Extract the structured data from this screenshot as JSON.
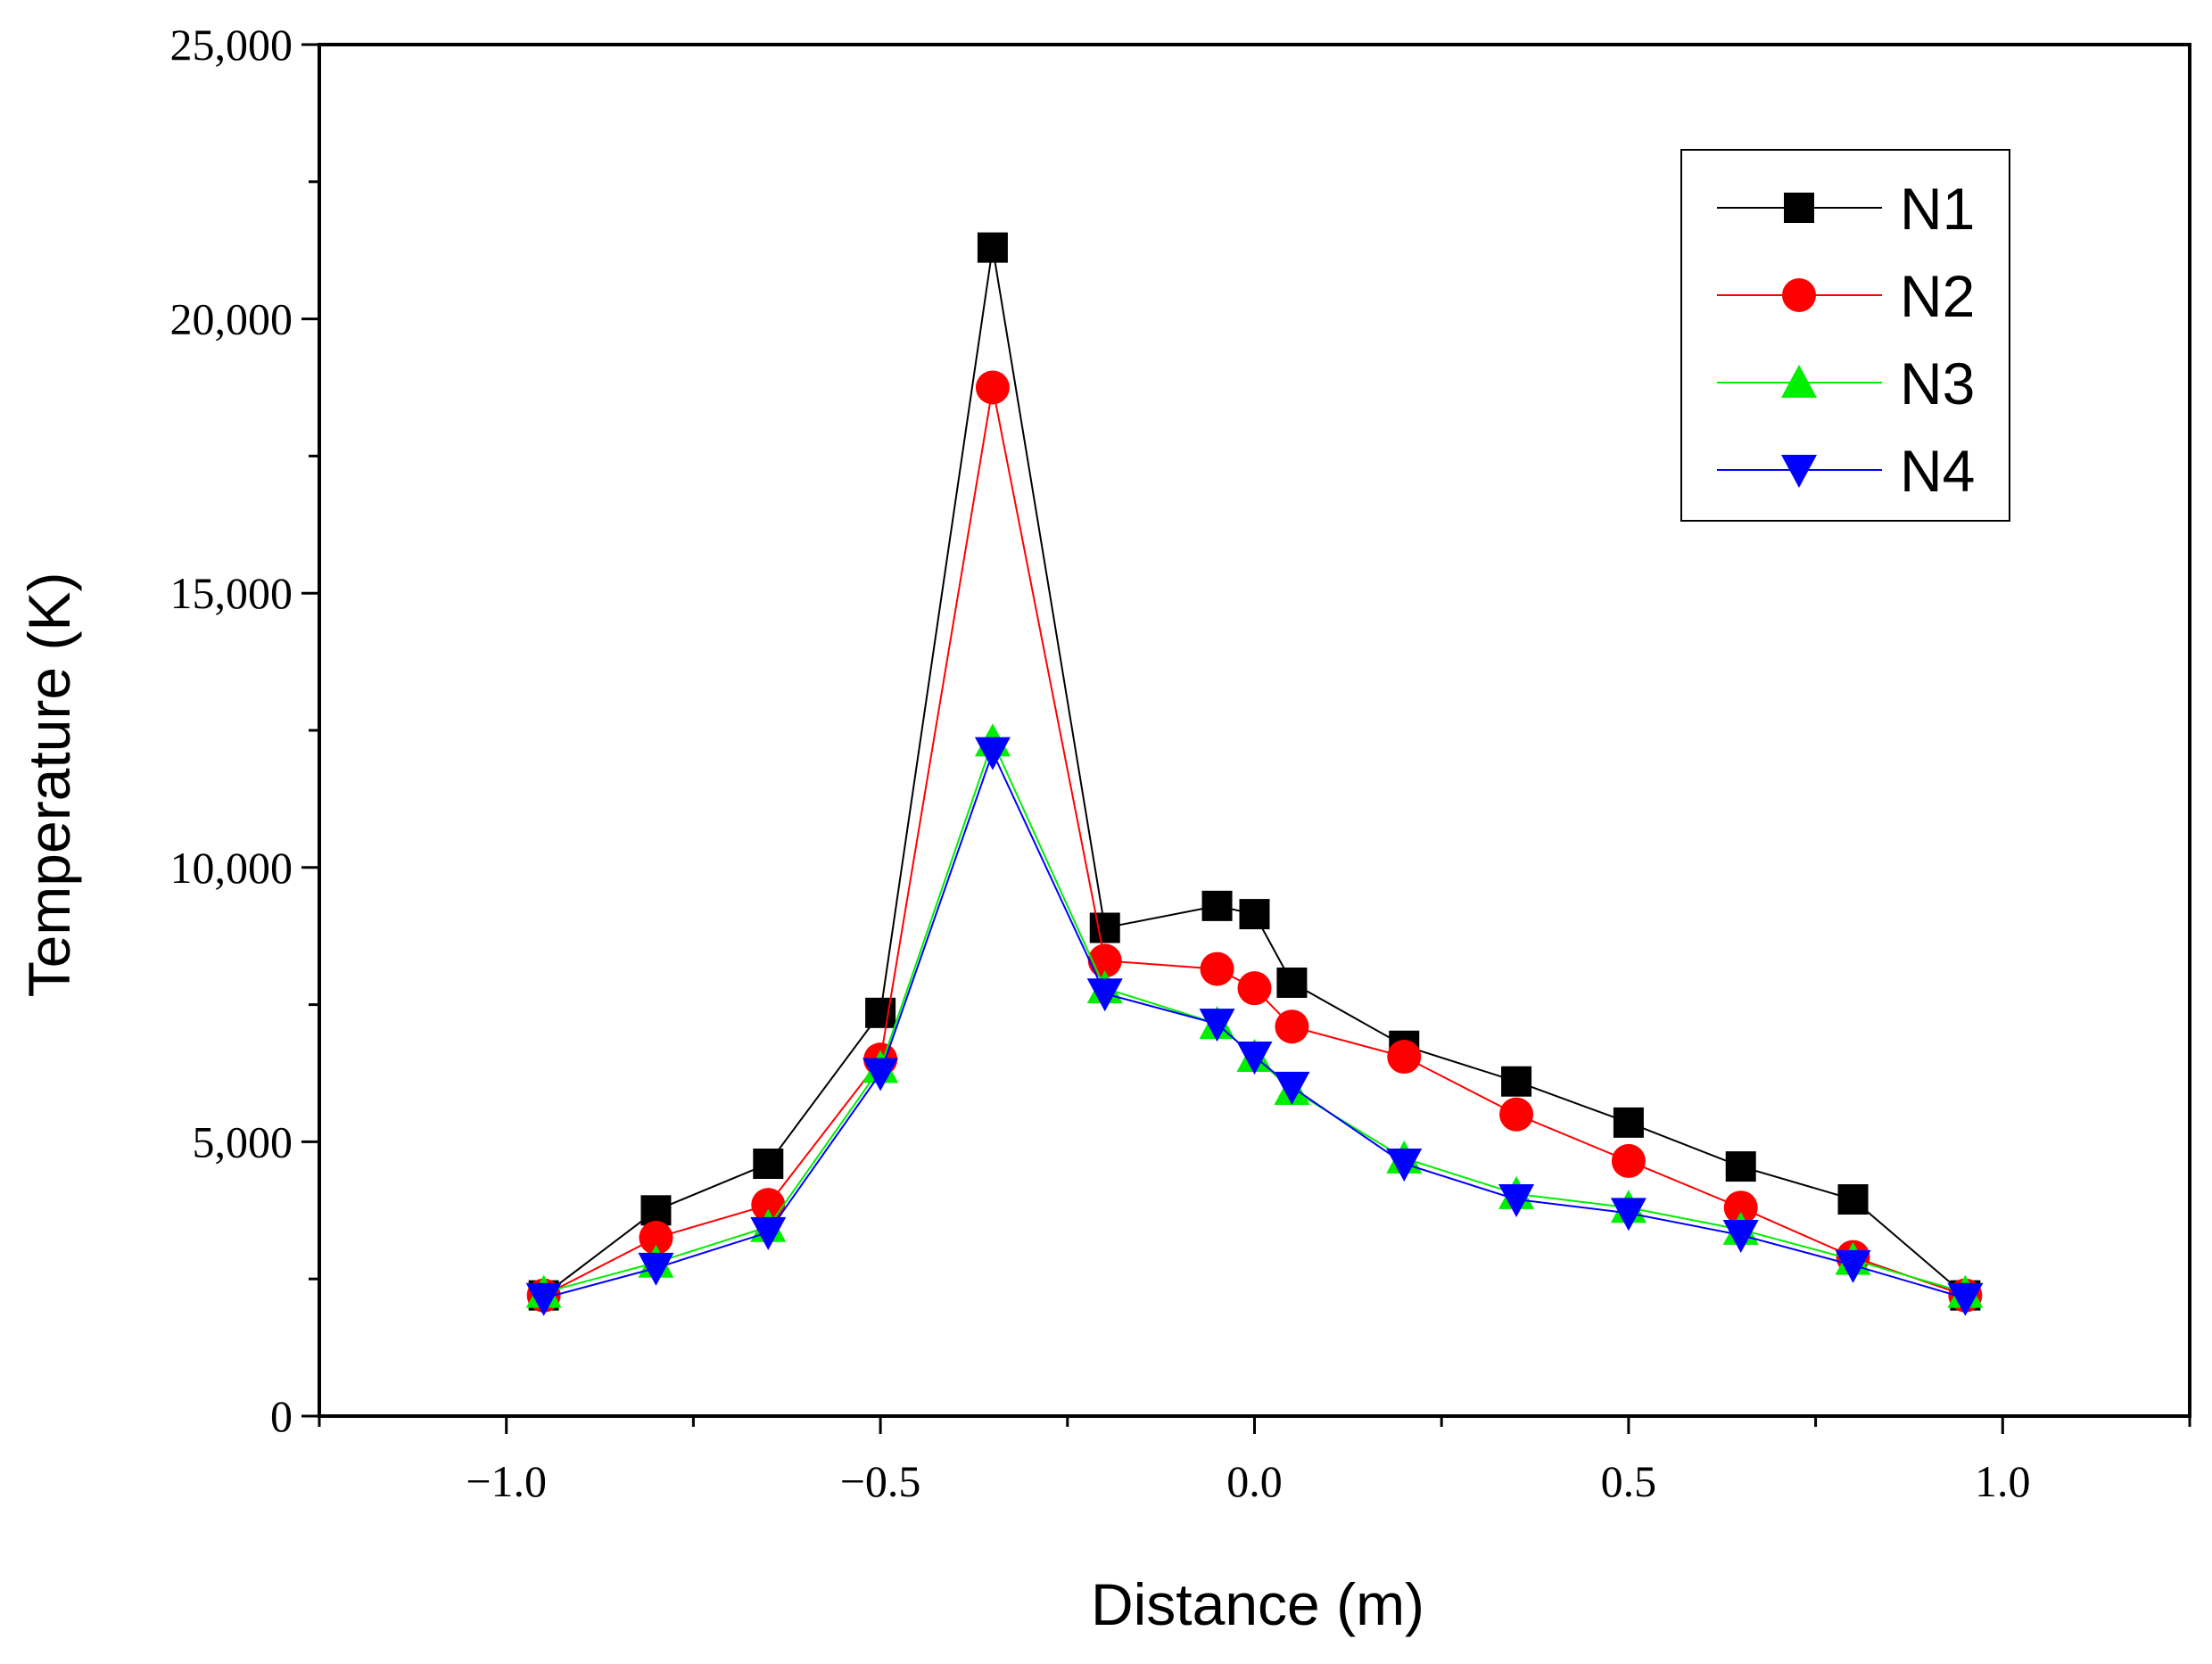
{
  "chart_data": {
    "type": "line",
    "title": "",
    "xlabel": "Distance (m)",
    "ylabel": "Temperature (K)",
    "xlim": [
      -1.25,
      1.25
    ],
    "ylim": [
      0,
      25000
    ],
    "x_ticks": [
      -1.0,
      -0.5,
      0.0,
      0.5,
      1.0
    ],
    "x_tick_labels": [
      "−1.0",
      "−0.5",
      "0.0",
      "0.5",
      "1.0"
    ],
    "y_ticks": [
      0,
      5000,
      10000,
      15000,
      20000,
      25000
    ],
    "y_tick_labels": [
      "0",
      "5,000",
      "10,000",
      "15,000",
      "20,000",
      "25,000"
    ],
    "grid": false,
    "legend_position": "top-right",
    "x": [
      -0.95,
      -0.8,
      -0.65,
      -0.5,
      -0.35,
      -0.2,
      -0.05,
      0.0,
      0.05,
      0.2,
      0.35,
      0.5,
      0.65,
      0.8,
      0.95
    ],
    "series": [
      {
        "name": "N1",
        "color": "#000000",
        "marker": "square",
        "values": [
          2200,
          3750,
          4600,
          7350,
          21300,
          8900,
          9300,
          9150,
          7900,
          6750,
          6100,
          5350,
          4550,
          3950,
          2200
        ]
      },
      {
        "name": "N2",
        "color": "#ff0000",
        "marker": "circle",
        "values": [
          2200,
          3250,
          3850,
          6500,
          18750,
          8300,
          8150,
          7800,
          7100,
          6550,
          5500,
          4650,
          3800,
          2900,
          2200
        ]
      },
      {
        "name": "N3",
        "color": "#00ee00",
        "marker": "triangle-up",
        "values": [
          2250,
          2800,
          3450,
          6350,
          12300,
          7800,
          7150,
          6550,
          5950,
          4700,
          4050,
          3800,
          3400,
          2850,
          2250
        ]
      },
      {
        "name": "N4",
        "color": "#0000ff",
        "marker": "triangle-down",
        "values": [
          2150,
          2700,
          3350,
          6250,
          12100,
          7700,
          7150,
          6550,
          6000,
          4600,
          3950,
          3700,
          3300,
          2750,
          2150
        ]
      }
    ]
  }
}
